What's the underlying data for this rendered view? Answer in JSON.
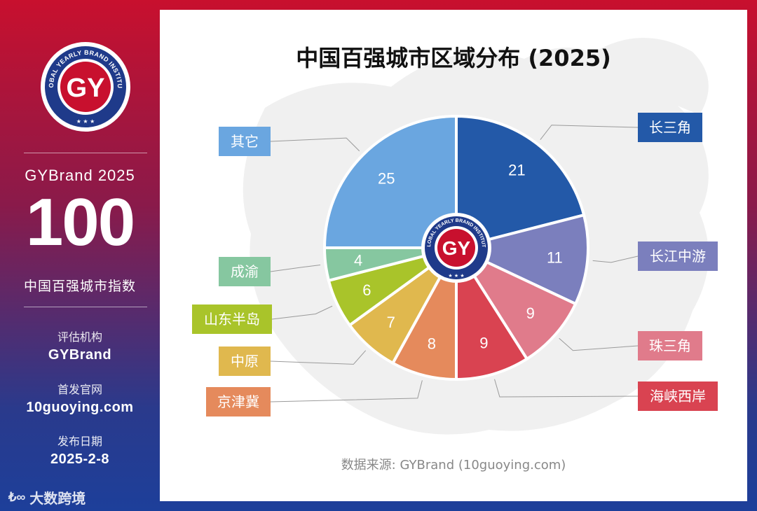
{
  "sidebar": {
    "logo_text": "GY",
    "logo_ring_text": "GLOBAL YEARLY BRAND INSTITUTE",
    "brand_year": "GYBrand 2025",
    "big_number": "100",
    "index_name": "中国百强城市指数",
    "org_label": "评估机构",
    "org_value": "GYBrand",
    "site_label": "首发官网",
    "site_value": "10guoying.com",
    "date_label": "发布日期",
    "date_value": "2025-2-8",
    "watermark": "大数跨境"
  },
  "colors": {
    "brand_red": "#c8102e",
    "brand_navy": "#1f3a8a"
  },
  "chart_data": {
    "type": "pie",
    "title": "中国百强城市区域分布 (2025)",
    "source": "数据来源: GYBrand (10guoying.com)",
    "slices": [
      {
        "label": "长三角",
        "value": 21,
        "color": "#2359a8"
      },
      {
        "label": "长江中游",
        "value": 11,
        "color": "#7b7fbd"
      },
      {
        "label": "珠三角",
        "value": 9,
        "color": "#e07b8b"
      },
      {
        "label": "海峡西岸",
        "value": 9,
        "color": "#d94351"
      },
      {
        "label": "京津冀",
        "value": 8,
        "color": "#e58a5c"
      },
      {
        "label": "中原",
        "value": 7,
        "color": "#e0b84e"
      },
      {
        "label": "山东半岛",
        "value": 6,
        "color": "#a9c42a"
      },
      {
        "label": "成渝",
        "value": 4,
        "color": "#86c7a0"
      },
      {
        "label": "其它",
        "value": 25,
        "color": "#6aa6e0"
      }
    ]
  }
}
